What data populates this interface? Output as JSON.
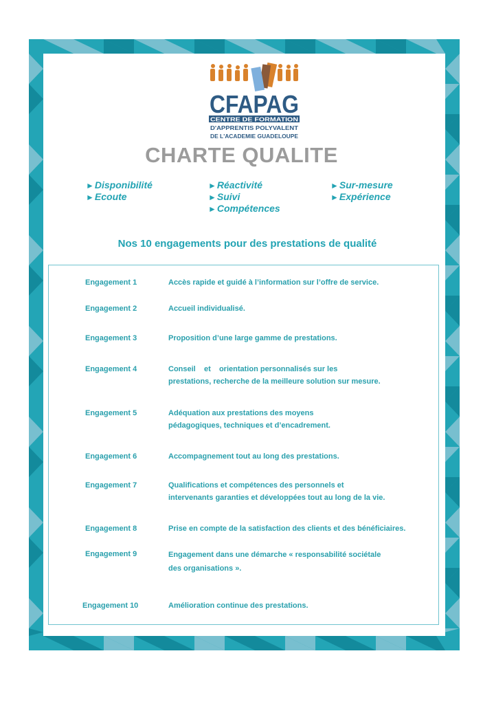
{
  "colors": {
    "border_main": "#23a5b6",
    "border_light": "#78bfcf",
    "border_dark": "#138a9c",
    "text": "#2aa0ad",
    "title": "#9b9b9b",
    "logo_blue": "#2e5b84",
    "logo_orange": "#d9822b"
  },
  "logo": {
    "name": "CFAPAG",
    "line1": "CENTRE DE FORMATION",
    "line2": "D'APPRENTIS POLYVALENT",
    "line3": "DE L'ACADEMIE GUADELOUPE"
  },
  "title": "CHARTE QUALITE",
  "values": [
    {
      "arrow": "►",
      "label": "Disponibilité"
    },
    {
      "arrow": "►",
      "label": "Ecoute"
    },
    {
      "arrow": "►",
      "label": "Réactivité"
    },
    {
      "arrow": "►",
      "label": "Suivi"
    },
    {
      "arrow": "►",
      "label": "Compétences"
    },
    {
      "arrow": "►",
      "label": "Sur-mesure"
    },
    {
      "arrow": "►",
      "label": "Expérience"
    }
  ],
  "heading": "Nos 10 engagements pour des prestations de qualité",
  "engagements": [
    {
      "label": "Engagement 1",
      "text": "Accès rapide et guidé à l’information sur l’offre de service."
    },
    {
      "label": "Engagement 2",
      "text": "Accueil individualisé."
    },
    {
      "label": "Engagement 3",
      "text": "Proposition d’une large gamme de prestations."
    },
    {
      "label": "Engagement 4",
      "text": "Conseil    et    orientation personnalisés sur les prestations, recherche de la meilleure solution sur mesure."
    },
    {
      "label": "Engagement 5",
      "text": "Adéquation aux prestations des moyens pédagogiques, techniques et d’encadrement."
    },
    {
      "label": "Engagement 6",
      "text": "Accompagnement tout au long des prestations."
    },
    {
      "label": "Engagement 7",
      "text": "Qualifications et compétences des personnels et intervenants garanties et développées tout au long de la vie."
    },
    {
      "label": "Engagement 8",
      "text": "Prise en compte de la satisfaction des clients et des bénéficiaires."
    },
    {
      "label": "Engagement 9",
      "text": "Engagement dans une démarche « responsabilité sociétale des organisations »."
    },
    {
      "label": "Engagement 10",
      "text": "Amélioration continue des prestations."
    }
  ]
}
